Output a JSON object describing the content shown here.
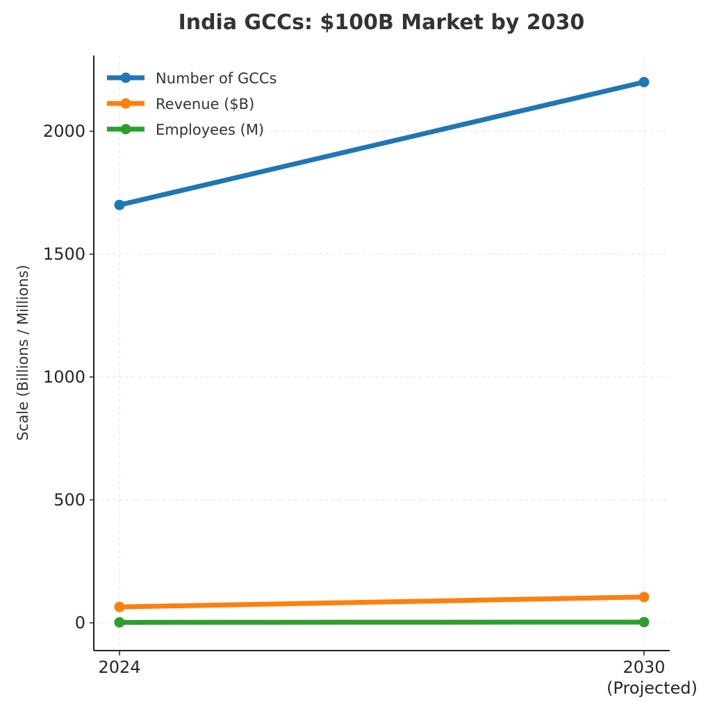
{
  "chart_data": {
    "type": "line",
    "title": "India GCCs: $100B Market by 2030",
    "xlabel": "",
    "ylabel": "Scale (Billions / Millions)",
    "categories": [
      "2024",
      "2030\n(Projected)"
    ],
    "x_tick_labels": [
      [
        "2024"
      ],
      [
        "2030",
        "(Projected)"
      ]
    ],
    "ylim": [
      -110,
      2310
    ],
    "yticks": [
      0,
      500,
      1000,
      1500,
      2000
    ],
    "grid": true,
    "legend_position": "top-left",
    "series": [
      {
        "name": "Number of GCCs",
        "color": "#1f77b4",
        "values": [
          1700,
          2200
        ]
      },
      {
        "name": "Revenue ($B)",
        "color": "#ff7f0e",
        "values": [
          64.6,
          105
        ]
      },
      {
        "name": "Employees (M)",
        "color": "#2ca02c",
        "values": [
          1.9,
          3
        ]
      }
    ]
  }
}
